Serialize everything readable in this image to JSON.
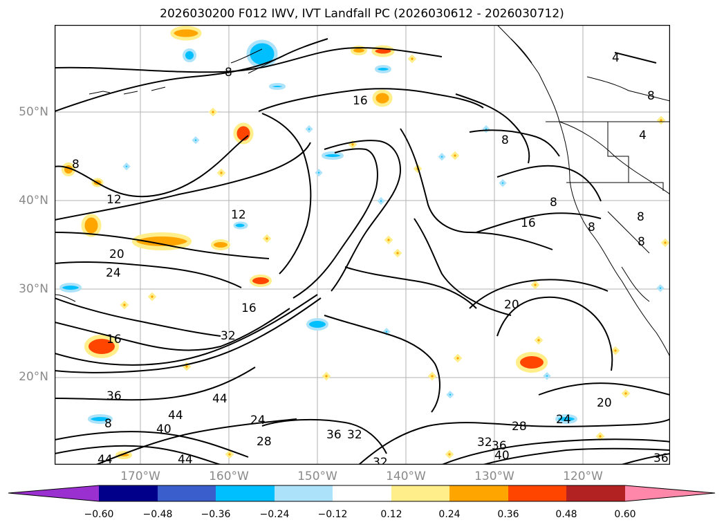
{
  "title": "2026030200 F012 IWV, IVT Landfall PC (2026030612 - 2026030712)",
  "lat_labels": [
    "50°N",
    "40°N",
    "30°N",
    "20°N"
  ],
  "lon_labels": [
    "170°W",
    "160°W",
    "150°W",
    "140°W",
    "130°W",
    "120°W"
  ],
  "colorbar": {
    "ticks": [
      "−0.60",
      "−0.48",
      "−0.36",
      "−0.24",
      "−0.12",
      "0.12",
      "0.24",
      "0.36",
      "0.48",
      "0.60"
    ],
    "colors": [
      "#9b30d0",
      "#00008b",
      "#3a5fcd",
      "#00bfff",
      "#ade3fa",
      "#ffffff",
      "#ffee8a",
      "#ffa500",
      "#ff4500",
      "#b22222",
      "#ff88aa"
    ]
  },
  "contour_labels": [
    "4",
    "4",
    "8",
    "8",
    "8",
    "8",
    "8",
    "8",
    "8",
    "12",
    "12",
    "16",
    "16",
    "16",
    "16",
    "20",
    "20",
    "20",
    "24",
    "24",
    "24",
    "28",
    "28",
    "32",
    "32",
    "32",
    "32",
    "36",
    "36",
    "36",
    "36",
    "40",
    "40",
    "44",
    "44",
    "44",
    "44",
    "8",
    "8"
  ],
  "legend_colors": {
    "positive_low": "#ffee8a",
    "positive_mid": "#ffa500",
    "positive_high": "#ff4500",
    "negative_low": "#ade3fa",
    "negative_mid": "#00bfff"
  }
}
